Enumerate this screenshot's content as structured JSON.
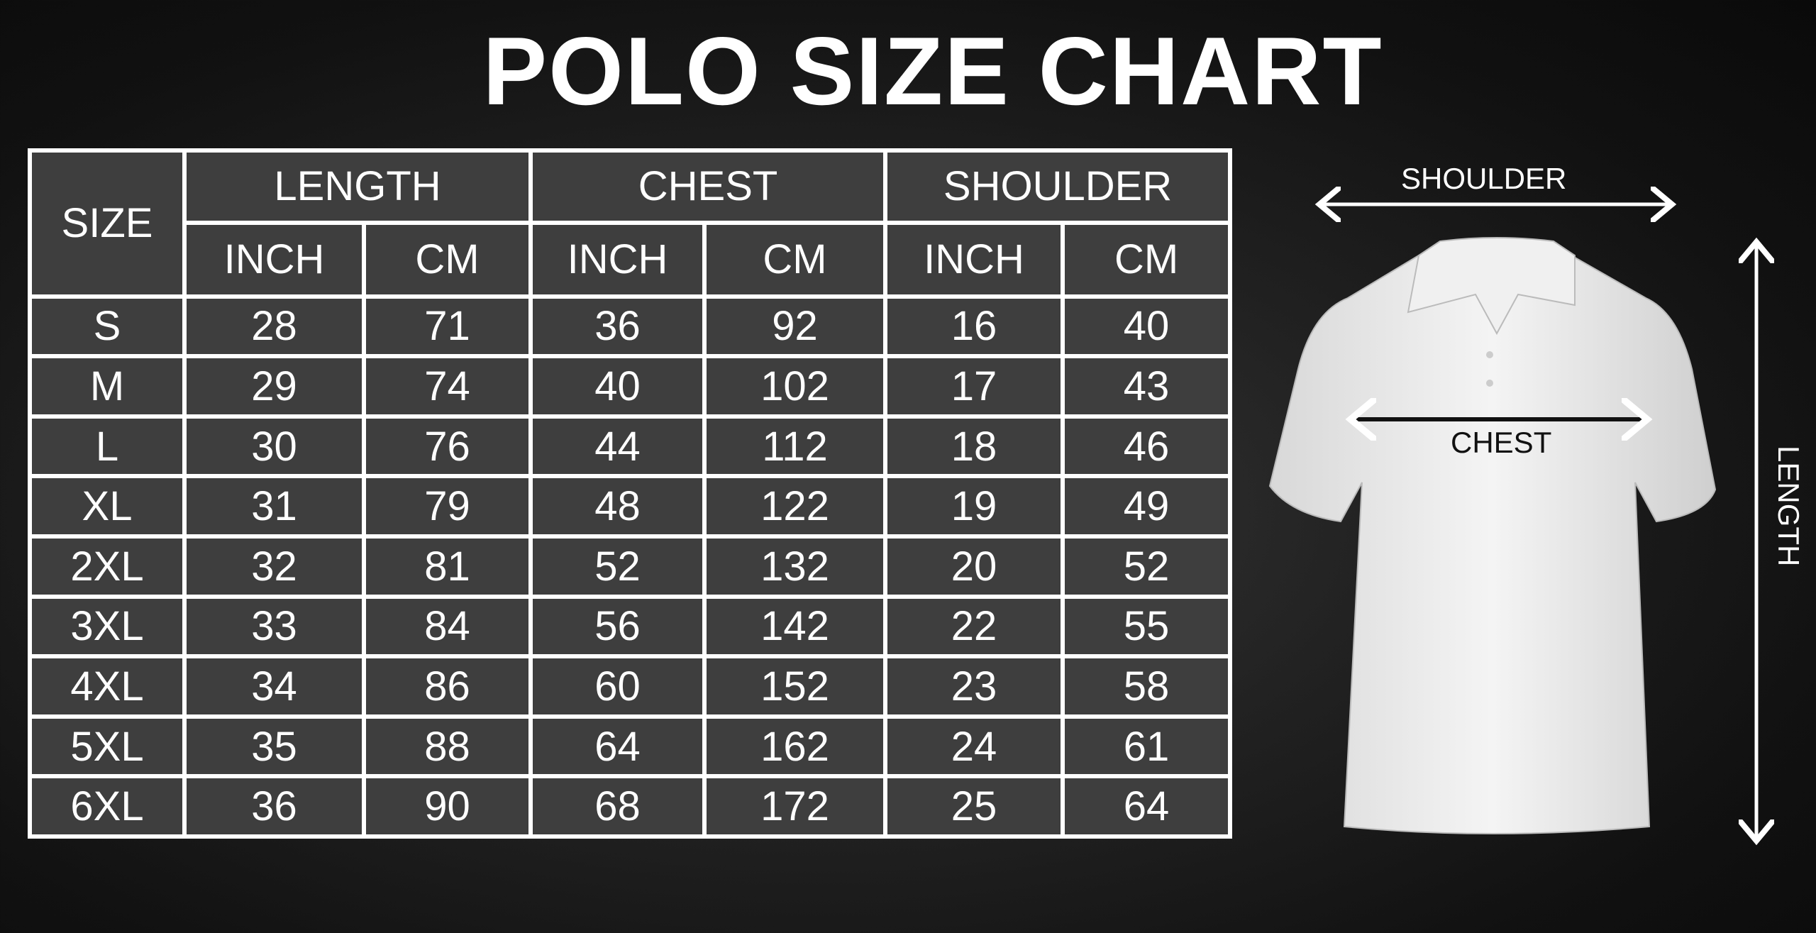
{
  "title": "POLO SIZE CHART",
  "table": {
    "size_header": "SIZE",
    "groups": [
      "LENGTH",
      "CHEST",
      "SHOULDER"
    ],
    "units": [
      "INCH",
      "CM",
      "INCH",
      "CM",
      "INCH",
      "CM"
    ],
    "rows": [
      {
        "size": "S",
        "values": [
          "28",
          "71",
          "36",
          "92",
          "16",
          "40"
        ]
      },
      {
        "size": "M",
        "values": [
          "29",
          "74",
          "40",
          "102",
          "17",
          "43"
        ]
      },
      {
        "size": "L",
        "values": [
          "30",
          "76",
          "44",
          "112",
          "18",
          "46"
        ]
      },
      {
        "size": "XL",
        "values": [
          "31",
          "79",
          "48",
          "122",
          "19",
          "49"
        ]
      },
      {
        "size": "2XL",
        "values": [
          "32",
          "81",
          "52",
          "132",
          "20",
          "52"
        ]
      },
      {
        "size": "3XL",
        "values": [
          "33",
          "84",
          "56",
          "142",
          "22",
          "55"
        ]
      },
      {
        "size": "4XL",
        "values": [
          "34",
          "86",
          "60",
          "152",
          "23",
          "58"
        ]
      },
      {
        "size": "5XL",
        "values": [
          "35",
          "88",
          "64",
          "162",
          "24",
          "61"
        ]
      },
      {
        "size": "6XL",
        "values": [
          "36",
          "90",
          "68",
          "172",
          "25",
          "64"
        ]
      }
    ]
  },
  "diagram": {
    "shoulder_label": "SHOULDER",
    "chest_label": "CHEST",
    "length_label": "LENGTH"
  }
}
